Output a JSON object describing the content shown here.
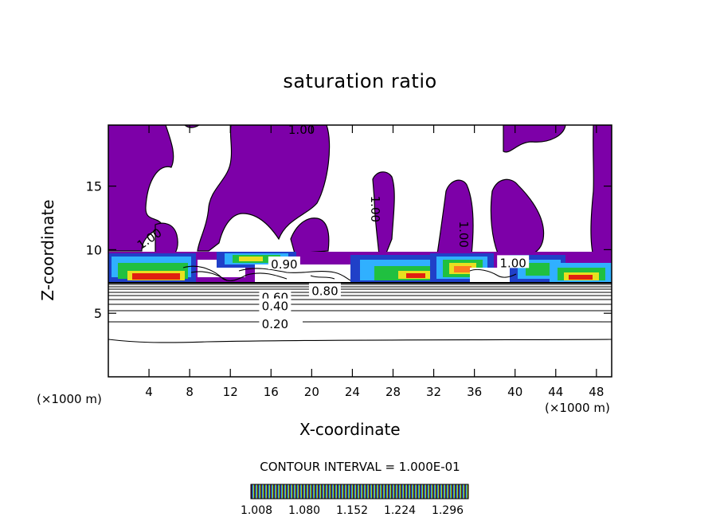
{
  "chart_data": {
    "type": "heatmap",
    "title": "saturation ratio",
    "xlabel": "X-coordinate",
    "ylabel": "Z-coordinate",
    "x_unit_label": "(×1000 m)",
    "x_ticks": [
      4,
      8,
      12,
      16,
      20,
      24,
      28,
      32,
      36,
      40,
      44,
      48
    ],
    "y_ticks": [
      5,
      10,
      15
    ],
    "xlim": [
      0,
      49.5
    ],
    "ylim": [
      0,
      19.8
    ],
    "contour_interval_label": "CONTOUR INTERVAL = 1.000E-01",
    "contour_labels": [
      {
        "text": "1.00",
        "x": 19,
        "y": 19.5,
        "rotate": 0
      },
      {
        "text": "1.00",
        "x": 26.3,
        "y": 13.2,
        "rotate": 90
      },
      {
        "text": "1.00",
        "x": 35,
        "y": 11.2,
        "rotate": 90
      },
      {
        "text": "1.00",
        "x": 39.8,
        "y": 9.0,
        "rotate": 0
      },
      {
        "text": "1.00",
        "x": 4.0,
        "y": 10.9,
        "rotate": -35
      },
      {
        "text": "0.90",
        "x": 17.3,
        "y": 8.9,
        "rotate": 0
      },
      {
        "text": "0.80",
        "x": 21.3,
        "y": 6.8,
        "rotate": 0
      },
      {
        "text": "0.60",
        "x": 16.4,
        "y": 6.3,
        "rotate": 0
      },
      {
        "text": "0.40",
        "x": 16.4,
        "y": 5.6,
        "rotate": 0
      },
      {
        "text": "0.20",
        "x": 16.4,
        "y": 4.2,
        "rotate": 0
      }
    ],
    "colorbar": {
      "ticks": [
        "1.008",
        "1.080",
        "1.152",
        "1.224",
        "1.296"
      ],
      "colors": [
        "#20007a",
        "#2040c0",
        "#40b8ff",
        "#20c040",
        "#f0e020",
        "#ff8020",
        "#e01010"
      ]
    },
    "fill_color": "#7d00a8"
  }
}
